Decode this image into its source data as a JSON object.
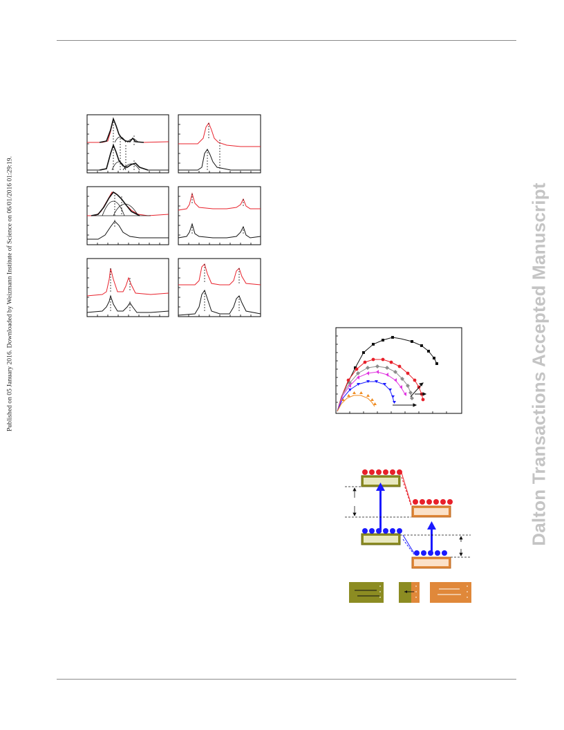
{
  "sidebar": {
    "published_note": "Published on 05 January 2016. Downloaded by Weizmann Institute of Science on 06/01/2016 01:29:19.",
    "watermark": "Dalton Transactions Accepted Manuscript"
  },
  "colors": {
    "red": "#e8202a",
    "black": "#111111",
    "blue": "#1a1aff",
    "magenta": "#e033e0",
    "gray": "#8c8c8c",
    "orange": "#f08a1e",
    "olive": "#8c8c22",
    "tan": "#e0883a"
  }
}
